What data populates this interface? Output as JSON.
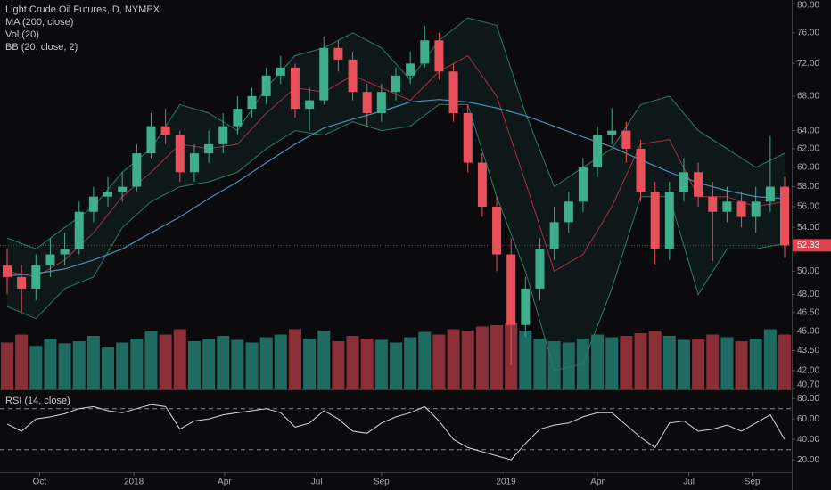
{
  "chart_data": {
    "type": "candlestick",
    "title": "Light Crude Oil Futures, D, NYMEX",
    "log_scale": true,
    "xlim": [
      0,
      108
    ],
    "ylim": [
      40.7,
      80
    ],
    "xticks": [
      {
        "value": 4.5,
        "label": "Oct"
      },
      {
        "value": 17.6,
        "label": "2018"
      },
      {
        "value": 30.2,
        "label": "Apr"
      },
      {
        "value": 43,
        "label": "Jul"
      },
      {
        "value": 52,
        "label": "Sep"
      },
      {
        "value": 69.3,
        "label": "2019"
      },
      {
        "value": 82,
        "label": "Apr"
      },
      {
        "value": 94.7,
        "label": "Jul"
      },
      {
        "value": 103.5,
        "label": "Sep"
      }
    ],
    "yticks": [
      {
        "value": 80,
        "label": "80.00"
      },
      {
        "value": 76,
        "label": "76.00"
      },
      {
        "value": 72,
        "label": "72.00"
      },
      {
        "value": 68,
        "label": "68.00"
      },
      {
        "value": 64,
        "label": "64.00"
      },
      {
        "value": 62,
        "label": "62.00"
      },
      {
        "value": 60,
        "label": "60.00"
      },
      {
        "value": 58,
        "label": "58.00"
      },
      {
        "value": 56,
        "label": "56.00"
      },
      {
        "value": 54,
        "label": "54.00"
      },
      {
        "value": 50,
        "label": "50.00"
      },
      {
        "value": 48,
        "label": "48.00"
      },
      {
        "value": 46.5,
        "label": "46.50"
      },
      {
        "value": 45,
        "label": "45.00"
      },
      {
        "value": 43.5,
        "label": "43.50"
      },
      {
        "value": 42,
        "label": "42.00"
      },
      {
        "value": 40.7,
        "label": "40.70"
      }
    ],
    "last_price": {
      "value": 52.33,
      "label": "52.33",
      "color": "#e0424f"
    },
    "candles": {
      "up_color": "#3fae8c",
      "down_color": "#e8505c",
      "x": [
        0,
        2,
        4,
        6,
        8,
        10,
        12,
        14,
        16,
        18,
        20,
        22,
        24,
        26,
        28,
        30,
        32,
        34,
        36,
        38,
        40,
        42,
        44,
        46,
        48,
        50,
        52,
        54,
        56,
        58,
        60,
        62,
        64,
        66,
        68,
        70,
        72,
        74,
        76,
        78,
        80,
        82,
        84,
        86,
        88,
        90,
        92,
        94,
        96,
        98,
        100,
        102,
        104,
        106,
        108
      ],
      "open": [
        50.5,
        49.5,
        48.5,
        50.5,
        51.5,
        52,
        55.5,
        57,
        57.5,
        58,
        61.5,
        64.5,
        63.5,
        59.5,
        61.5,
        62.5,
        64.5,
        66.5,
        68,
        70.5,
        71.5,
        66.5,
        67.5,
        74,
        72.5,
        68.5,
        66,
        68.5,
        70.5,
        72,
        75,
        71,
        66,
        60.5,
        56,
        51.5,
        45.5,
        48.5,
        52,
        54.5,
        56.5,
        60,
        63.5,
        64,
        62,
        57.5,
        52,
        57.5,
        59.5,
        57,
        55.5,
        56.5,
        55,
        56.5,
        58
      ],
      "high": [
        52,
        50.5,
        51.5,
        53,
        53.5,
        56.5,
        58,
        59,
        59.5,
        62.5,
        66,
        66.5,
        64,
        62.5,
        64,
        66,
        68,
        69,
        71.5,
        73,
        72,
        69,
        75.5,
        75,
        73.5,
        69.5,
        69.5,
        71.5,
        73.5,
        76.9,
        76,
        72,
        67,
        61.5,
        57,
        53,
        49.5,
        53,
        56,
        57.5,
        61,
        64.5,
        66.6,
        65,
        63,
        58.5,
        58.5,
        61,
        60.5,
        58.5,
        58,
        57.5,
        58,
        63.4,
        59
      ],
      "low": [
        48,
        46.5,
        47.5,
        49.5,
        50.5,
        51.5,
        54.5,
        56,
        56.5,
        57.5,
        61,
        62.5,
        58.5,
        58.5,
        60.5,
        61.5,
        63.5,
        65.5,
        67,
        69.5,
        65.5,
        64,
        67,
        71,
        67.5,
        64.5,
        65,
        67.5,
        69.5,
        71.5,
        70,
        65,
        59.5,
        55,
        50,
        42.4,
        44.5,
        47.5,
        51,
        53.5,
        55.5,
        59,
        62.5,
        60.5,
        56.5,
        50.6,
        51,
        56.5,
        56,
        50.9,
        54.5,
        54,
        53.5,
        55.5,
        51.2
      ],
      "close": [
        49.5,
        48.5,
        50.5,
        51.5,
        52,
        55.5,
        57,
        57.5,
        58,
        61.5,
        64.5,
        63.5,
        59.5,
        61.5,
        62.5,
        64.5,
        66.5,
        68,
        70.5,
        71.5,
        66.5,
        67.5,
        74,
        72.5,
        68.5,
        66,
        68.5,
        70.5,
        72,
        75,
        71,
        66,
        60.5,
        56,
        51.5,
        45.5,
        48.5,
        52,
        54.5,
        56.5,
        60,
        63.5,
        64,
        62,
        57.5,
        52,
        57.5,
        59.5,
        57,
        55.5,
        56.5,
        55,
        56.5,
        58,
        52.33
      ]
    },
    "volume": {
      "name": "Vol (20)",
      "up_color": "#1f6b62",
      "down_color": "#8a2f38",
      "values": [
        700,
        820,
        650,
        760,
        690,
        720,
        800,
        640,
        700,
        760,
        880,
        820,
        900,
        720,
        760,
        800,
        740,
        700,
        780,
        820,
        900,
        760,
        880,
        720,
        800,
        760,
        740,
        700,
        780,
        860,
        820,
        900,
        880,
        940,
        960,
        1000,
        880,
        760,
        720,
        700,
        760,
        820,
        780,
        800,
        840,
        880,
        800,
        740,
        760,
        820,
        780,
        720,
        760,
        900,
        820
      ]
    },
    "ma": {
      "name": "MA (200, close)",
      "color": "#4a8fb8",
      "x": [
        0,
        4,
        8,
        12,
        16,
        20,
        24,
        28,
        32,
        36,
        40,
        44,
        48,
        52,
        56,
        60,
        64,
        68,
        72,
        76,
        80,
        84,
        88,
        92,
        96,
        100,
        104,
        108
      ],
      "values": [
        49.6,
        49.8,
        50.2,
        51,
        52,
        53.5,
        55,
        56.8,
        58.5,
        60.5,
        62.5,
        64.3,
        65.3,
        66.2,
        67.3,
        67.6,
        67.3,
        66.6,
        65.7,
        64.5,
        63.3,
        62.2,
        60.8,
        59.5,
        58.4,
        57.6,
        57,
        56.8
      ]
    },
    "bb": {
      "name": "BB (20, close, 2)",
      "color": "#2d7a68",
      "basis_color": "#a8323d",
      "x": [
        0,
        4,
        8,
        12,
        16,
        20,
        24,
        28,
        32,
        36,
        40,
        44,
        48,
        52,
        56,
        60,
        64,
        68,
        72,
        76,
        80,
        84,
        88,
        92,
        96,
        100,
        104,
        108
      ],
      "upper": [
        53,
        52,
        54,
        56,
        59.5,
        62,
        67,
        66,
        64,
        69,
        73,
        74,
        76,
        74,
        70,
        75,
        78,
        77,
        66,
        58,
        60,
        62,
        67,
        68,
        64,
        62,
        60,
        61.5
      ],
      "basis": [
        50,
        49.5,
        51,
        53.5,
        57,
        59.5,
        62.5,
        62,
        62.5,
        66,
        69,
        68.5,
        70.5,
        69,
        67.5,
        71,
        73,
        68,
        58.5,
        50,
        51.5,
        56,
        62.5,
        63,
        57,
        57,
        56,
        56.5
      ],
      "lower": [
        47,
        46,
        48.5,
        49.5,
        54,
        56.5,
        58,
        58.5,
        59.5,
        62,
        64,
        63.5,
        65,
        64,
        64.5,
        67,
        67,
        57,
        50,
        42,
        42.5,
        48.5,
        57,
        57,
        48,
        52,
        52,
        52.5
      ]
    },
    "rsi": {
      "name": "RSI (14, close)",
      "color": "#d8d8d8",
      "ylim": [
        8,
        88
      ],
      "yticks": [
        {
          "value": 80,
          "label": "80.00"
        },
        {
          "value": 60,
          "label": "60.00"
        },
        {
          "value": 40,
          "label": "40.00"
        },
        {
          "value": 20,
          "label": "20.00"
        }
      ],
      "bands": [
        70,
        30
      ],
      "x": [
        0,
        2,
        4,
        6,
        8,
        10,
        12,
        14,
        16,
        18,
        20,
        22,
        24,
        26,
        28,
        30,
        32,
        34,
        36,
        38,
        40,
        42,
        44,
        46,
        48,
        50,
        52,
        54,
        56,
        58,
        60,
        62,
        64,
        66,
        68,
        70,
        72,
        74,
        76,
        78,
        80,
        82,
        84,
        86,
        88,
        90,
        92,
        94,
        96,
        98,
        100,
        102,
        104,
        106,
        108
      ],
      "values": [
        55,
        48,
        60,
        62,
        65,
        70,
        72,
        68,
        66,
        70,
        74,
        72,
        50,
        58,
        60,
        64,
        66,
        68,
        70,
        66,
        52,
        56,
        68,
        60,
        48,
        46,
        56,
        62,
        66,
        72,
        58,
        40,
        32,
        28,
        24,
        20,
        36,
        50,
        54,
        56,
        62,
        66,
        66,
        54,
        42,
        32,
        56,
        58,
        48,
        50,
        54,
        48,
        56,
        64,
        40
      ]
    }
  }
}
